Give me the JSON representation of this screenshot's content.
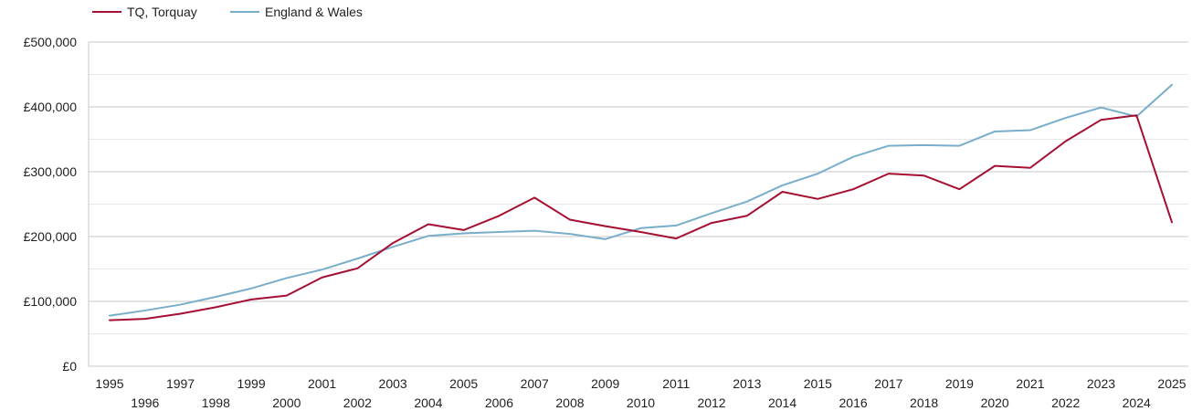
{
  "chart_data": {
    "type": "line",
    "title": "",
    "xlabel": "",
    "ylabel": "",
    "x": [
      1995,
      1996,
      1997,
      1998,
      1999,
      2000,
      2001,
      2002,
      2003,
      2004,
      2005,
      2006,
      2007,
      2008,
      2009,
      2010,
      2011,
      2012,
      2013,
      2014,
      2015,
      2016,
      2017,
      2018,
      2019,
      2020,
      2021,
      2022,
      2023,
      2024,
      2025
    ],
    "xlim": [
      1995,
      2025
    ],
    "ylim": [
      0,
      500000
    ],
    "y_ticks": [
      0,
      100000,
      200000,
      300000,
      400000,
      500000
    ],
    "y_tick_labels": [
      "£0",
      "£100,000",
      "£200,000",
      "£300,000",
      "£400,000",
      "£500,000"
    ],
    "x_tick_labels": [
      "1995",
      "1996",
      "1997",
      "1998",
      "1999",
      "2000",
      "2001",
      "2002",
      "2003",
      "2004",
      "2005",
      "2006",
      "2007",
      "2008",
      "2009",
      "2010",
      "2011",
      "2012",
      "2013",
      "2014",
      "2015",
      "2016",
      "2017",
      "2018",
      "2019",
      "2020",
      "2021",
      "2022",
      "2023",
      "2024",
      "2025"
    ],
    "grid": true,
    "legend_position": "top-left",
    "series": [
      {
        "name": "TQ, Torquay",
        "color": "#a50f32",
        "values": [
          71000,
          73000,
          81000,
          91000,
          103000,
          109000,
          137000,
          151000,
          190000,
          219000,
          210000,
          232000,
          260000,
          226000,
          216000,
          207000,
          197000,
          221000,
          232000,
          269000,
          258000,
          273000,
          297000,
          294000,
          273000,
          309000,
          306000,
          347000,
          380000,
          387000,
          222000
        ]
      },
      {
        "name": "England & Wales",
        "color": "#79aecb",
        "values": [
          78000,
          86000,
          95000,
          107000,
          120000,
          136000,
          149000,
          166000,
          184000,
          201000,
          205000,
          207000,
          209000,
          204000,
          196000,
          213000,
          217000,
          236000,
          254000,
          279000,
          297000,
          323000,
          340000,
          341000,
          340000,
          362000,
          364000,
          383000,
          399000,
          385000,
          434000
        ]
      }
    ]
  }
}
